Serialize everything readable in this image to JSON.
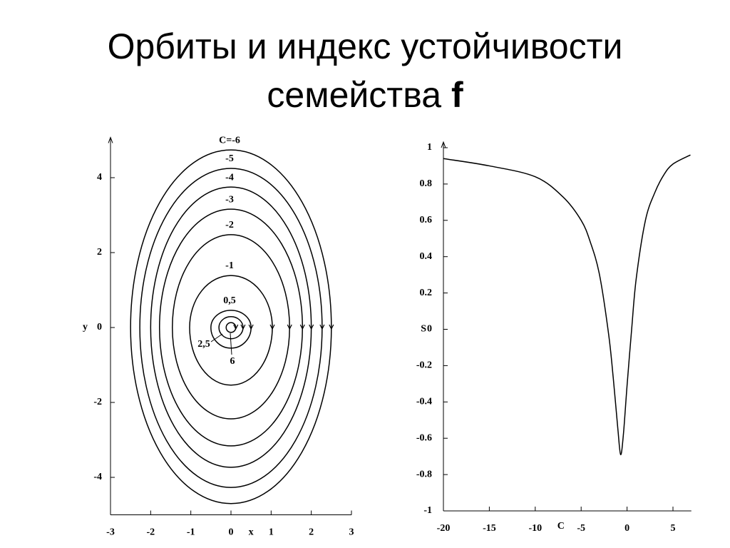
{
  "slide_title": {
    "line1": "Орбиты и индекс устойчивости",
    "line2": "семейства",
    "bold": "f"
  },
  "chart_data": [
    {
      "type": "orbits",
      "x_label": "x",
      "y_label": "y",
      "color": "#000000",
      "xlim": [
        -3,
        3
      ],
      "xticks": [
        -3,
        -2,
        -1,
        0,
        1,
        2,
        3
      ],
      "ylim": [
        -5,
        5
      ],
      "yticks": [
        -4,
        -2,
        0,
        2,
        4
      ],
      "orbits": [
        {
          "label": "C=-6",
          "x_extent": 2.5,
          "y_top": 4.74,
          "y_bottom": -4.7
        },
        {
          "label": "-5",
          "x_extent": 2.27,
          "y_top": 4.25,
          "y_bottom": -4.27
        },
        {
          "label": "-4",
          "x_extent": 2.0,
          "y_top": 3.75,
          "y_bottom": -3.73
        },
        {
          "label": "-3",
          "x_extent": 1.78,
          "y_top": 3.16,
          "y_bottom": -3.16
        },
        {
          "label": "-2",
          "x_extent": 1.46,
          "y_top": 2.48,
          "y_bottom": -2.44
        },
        {
          "label": "-1",
          "x_extent": 1.03,
          "y_top": 1.39,
          "y_bottom": -1.54
        },
        {
          "label": "0,5",
          "x_extent": 0.5,
          "y_top": 0.46,
          "y_bottom": -0.55
        },
        {
          "label": "2,5",
          "x_extent": 0.3,
          "y_top": 0.29,
          "y_bottom": -0.3
        },
        {
          "label": "6",
          "x_extent": 0.12,
          "y_top": 0.13,
          "y_bottom": -0.13
        }
      ]
    },
    {
      "type": "line",
      "x_label": "C",
      "y_label": "S",
      "color": "#000000",
      "xlim": [
        -20,
        7
      ],
      "xticks": [
        -20,
        -15,
        -10,
        -5,
        0,
        5
      ],
      "ylim": [
        -1,
        1
      ],
      "yticks": [
        -1,
        -0.8,
        -0.6,
        -0.4,
        -0.2,
        0,
        0.2,
        0.4,
        0.6,
        0.8,
        1
      ],
      "x": [
        -20,
        -15,
        -10,
        -7,
        -5,
        -4,
        -3,
        -2,
        -1.5,
        -1,
        -0.7,
        -0.4,
        0,
        0.5,
        1,
        2,
        3,
        4,
        5,
        6.9
      ],
      "values": [
        0.94,
        0.9,
        0.84,
        0.73,
        0.6,
        0.48,
        0.3,
        -0.03,
        -0.27,
        -0.55,
        -0.69,
        -0.58,
        -0.31,
        0,
        0.28,
        0.6,
        0.75,
        0.85,
        0.91,
        0.96
      ]
    }
  ]
}
